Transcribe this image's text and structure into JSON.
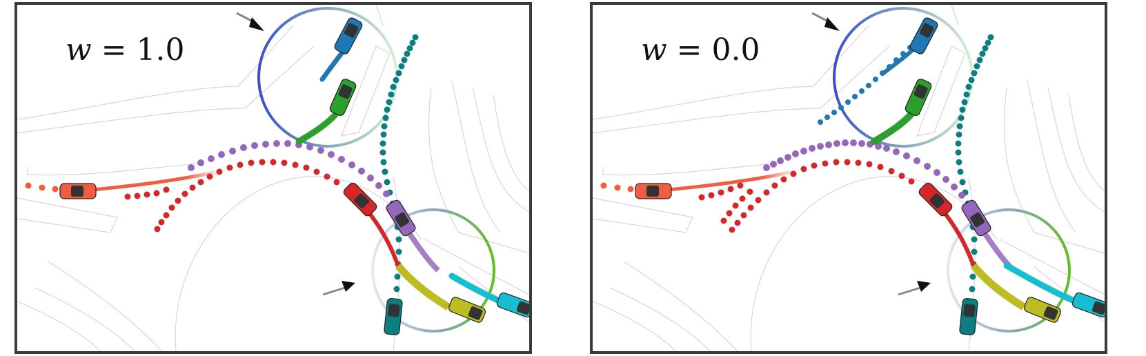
{
  "panels": [
    {
      "id": "left",
      "label_var": "w",
      "label_eq": " = ",
      "label_value": "1.0"
    },
    {
      "id": "right",
      "label_var": "w",
      "label_eq": " = ",
      "label_value": "0.0"
    }
  ],
  "colors": {
    "red_light": "#f25c3f",
    "red_dark": "#d62728",
    "purple": "#9467bd",
    "teal": "#0b7f7f",
    "blue": "#1f77b4",
    "green": "#2ca02c",
    "olive": "#bcbd22",
    "cyan": "#17becf",
    "frame": "#3a3a3a",
    "map_lines": "#d6d6d6"
  },
  "icons": [
    "car-icon",
    "arrow-icon"
  ]
}
